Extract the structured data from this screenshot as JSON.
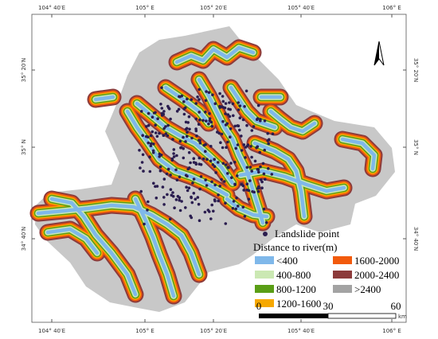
{
  "map": {
    "top_labels": [
      "104° 40′E",
      "105° E",
      "105° 20′E",
      "105° 40′E",
      "106° E"
    ],
    "bottom_labels": [
      "104° 40′E",
      "105° E",
      "105° 20′E",
      "105° 40′E",
      "106° E"
    ],
    "left_labels": [
      "35° 20′N",
      "35° N",
      "34° 40′N"
    ],
    "right_labels": [
      "35° 20′N",
      "35° N",
      "34° 40′N"
    ],
    "legend": {
      "point_label": "Landslide point",
      "title": "Distance to river(m)",
      "items": [
        {
          "label": "<400",
          "color": "#7fb8ea"
        },
        {
          "label": "400-800",
          "color": "#cbe8b3"
        },
        {
          "label": "800-1200",
          "color": "#5a9e16"
        },
        {
          "label": "1200-1600",
          "color": "#f6a800"
        },
        {
          "label": "1600-2000",
          "color": "#f25a0c"
        },
        {
          "label": "2000-2400",
          "color": "#8c3b3b"
        },
        {
          "label": ">2400",
          "color": "#a3a3a3"
        }
      ]
    },
    "scale": {
      "labels": [
        "0",
        "30",
        "60"
      ],
      "unit": "km"
    }
  }
}
